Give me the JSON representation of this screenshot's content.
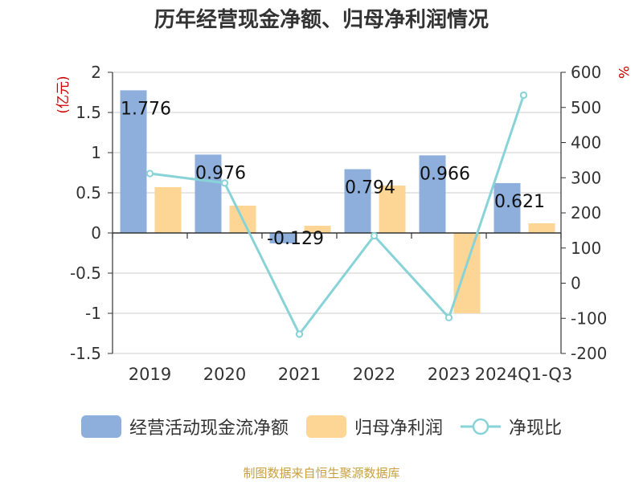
{
  "title": "历年经营现金净额、归母净利润情况",
  "source": "制图数据来自恒生聚源数据库",
  "colors": {
    "bar1": "#8eafdc",
    "bar2": "#fdd696",
    "line": "#88d3d8",
    "axis": "#333333",
    "grid": "#cccccc",
    "unit": "#cc0000",
    "source": "#c8a040"
  },
  "chart_data": {
    "type": "bar",
    "categories": [
      "2019",
      "2020",
      "2021",
      "2022",
      "2023",
      "2024Q1-Q3"
    ],
    "series": [
      {
        "name": "经营活动现金流净额",
        "type": "bar",
        "axis": "left",
        "values": [
          1.776,
          0.976,
          -0.129,
          0.794,
          0.966,
          0.621
        ],
        "labels": [
          "1.776",
          "0.976",
          "-0.129",
          "0.794",
          "0.966",
          "0.621"
        ]
      },
      {
        "name": "归母净利润",
        "type": "bar",
        "axis": "left",
        "values": [
          0.57,
          0.34,
          0.09,
          0.59,
          -1.0,
          0.12
        ]
      },
      {
        "name": "净现比",
        "type": "line",
        "axis": "right",
        "values": [
          312,
          285,
          -145,
          135,
          -98,
          535
        ]
      }
    ],
    "y_left": {
      "label": "(亿元)",
      "range": [
        -1.5,
        2
      ],
      "ticks": [
        "2",
        "1.5",
        "1",
        "0.5",
        "0",
        "-0.5",
        "-1",
        "-1.5"
      ],
      "tick_values": [
        2,
        1.5,
        1,
        0.5,
        0,
        -0.5,
        -1,
        -1.5
      ]
    },
    "y_right": {
      "label": "%",
      "range": [
        -200,
        600
      ],
      "ticks": [
        "600",
        "500",
        "400",
        "300",
        "200",
        "100",
        "0",
        "-100",
        "-200"
      ],
      "tick_values": [
        600,
        500,
        400,
        300,
        200,
        100,
        0,
        -100,
        -200
      ]
    },
    "grid": true,
    "legend_position": "bottom"
  }
}
